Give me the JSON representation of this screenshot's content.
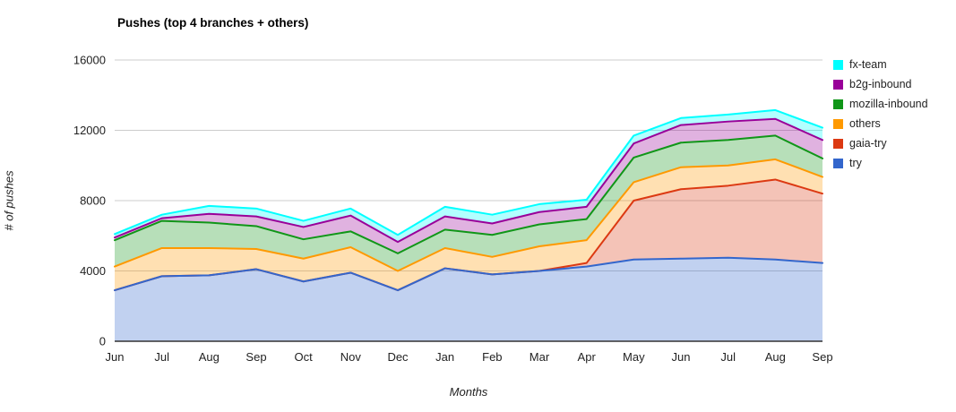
{
  "title": "Pushes (top 4 branches + others)",
  "axes": {
    "x_title": "Months",
    "y_title": "# of pushes",
    "y_tick_labels": [
      "0",
      "4000",
      "8000",
      "12000",
      "16000"
    ]
  },
  "colors": {
    "gridline": "#CCCCCC",
    "axis_line": "#333333",
    "tick_text": "#222222"
  },
  "chart_data": {
    "type": "area",
    "stacked": true,
    "title": "Pushes (top 4 branches + others)",
    "xlabel": "Months",
    "ylabel": "# of pushes",
    "x": [
      "Jun",
      "Jul",
      "Aug",
      "Sep",
      "Oct",
      "Nov",
      "Dec",
      "Jan",
      "Feb",
      "Mar",
      "Apr",
      "May",
      "Jun",
      "Jul",
      "Aug",
      "Sep"
    ],
    "ylim": [
      0,
      16000
    ],
    "y_ticks": [
      0,
      4000,
      8000,
      12000,
      16000
    ],
    "grid": true,
    "legend_position": "right",
    "area_opacity": 0.3,
    "line_width": 2,
    "series": [
      {
        "name": "try",
        "color": "#3366CC",
        "values": [
          2900,
          3700,
          3750,
          4100,
          3400,
          3900,
          2900,
          4150,
          3800,
          4000,
          4250,
          4650,
          4700,
          4750,
          4650,
          4450
        ]
      },
      {
        "name": "gaia-try",
        "color": "#DC3912",
        "values": [
          0,
          0,
          0,
          0,
          0,
          0,
          0,
          0,
          0,
          0,
          200,
          3350,
          3950,
          4100,
          4550,
          3950
        ]
      },
      {
        "name": "others",
        "color": "#FF9900",
        "values": [
          1350,
          1600,
          1550,
          1150,
          1300,
          1450,
          1100,
          1150,
          1000,
          1400,
          1300,
          1050,
          1250,
          1150,
          1150,
          950
        ]
      },
      {
        "name": "mozilla-inbound",
        "color": "#109618",
        "values": [
          1500,
          1550,
          1450,
          1300,
          1100,
          900,
          1000,
          1050,
          1250,
          1250,
          1200,
          1400,
          1400,
          1450,
          1350,
          1050
        ]
      },
      {
        "name": "b2g-inbound",
        "color": "#990099",
        "values": [
          150,
          150,
          500,
          550,
          700,
          900,
          650,
          750,
          650,
          700,
          700,
          800,
          1000,
          1050,
          950,
          1050
        ]
      },
      {
        "name": "fx-team",
        "color": "#00FFFF",
        "values": [
          200,
          200,
          450,
          450,
          350,
          400,
          400,
          550,
          500,
          450,
          400,
          450,
          400,
          400,
          500,
          700
        ]
      }
    ]
  }
}
